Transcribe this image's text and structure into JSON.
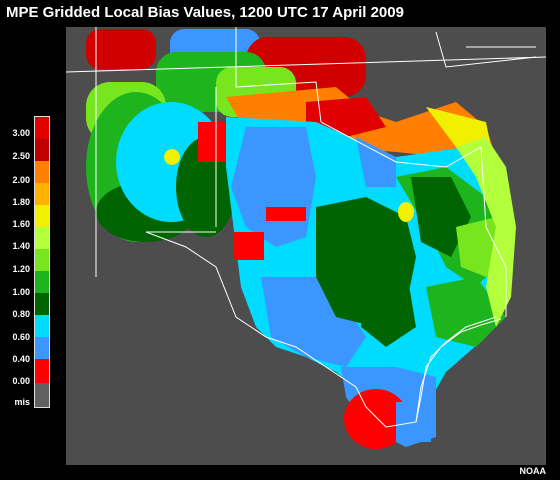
{
  "title": "MPE Gridded Local Bias Values, 1200 UTC 17 April 2009",
  "credit": "NOAA",
  "legend": {
    "labels": [
      "3.00",
      "2.50",
      "2.00",
      "1.80",
      "1.60",
      "1.40",
      "1.20",
      "1.00",
      "0.80",
      "0.60",
      "0.40",
      "0.00",
      "mis"
    ],
    "colors": [
      "#e00000",
      "#c00000",
      "#ff8000",
      "#ffb000",
      "#f0f000",
      "#b4ff3c",
      "#78e61e",
      "#1eb41e",
      "#006400",
      "#00dcff",
      "#3c96ff",
      "#ff0000",
      "#606060"
    ]
  },
  "colors": {
    "background": "#000000",
    "map_background": "#4d4d4d",
    "boundaries": "#ffffff"
  }
}
